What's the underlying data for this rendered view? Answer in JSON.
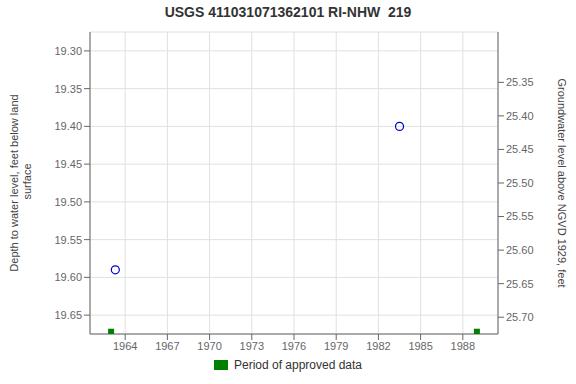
{
  "chart_data": {
    "type": "scatter",
    "title": "USGS 411031071362101 RI-NHW  219",
    "y_label": "Depth to water level, feet below land\n surface",
    "y2_label": "Groundwater level above NGVD 1929, feet",
    "xlim": [
      1961.5,
      1990.5
    ],
    "xticks": [
      1964,
      1967,
      1970,
      1973,
      1976,
      1979,
      1982,
      1985,
      1988
    ],
    "ylim": [
      19.675,
      19.275
    ],
    "yticks": [
      {
        "value": 19.3,
        "label": "19.30"
      },
      {
        "value": 19.35,
        "label": "19.35"
      },
      {
        "value": 19.4,
        "label": "19.40"
      },
      {
        "value": 19.45,
        "label": "19.45"
      },
      {
        "value": 19.5,
        "label": "19.50"
      },
      {
        "value": 19.55,
        "label": "19.55"
      },
      {
        "value": 19.6,
        "label": "19.60"
      },
      {
        "value": 19.65,
        "label": "19.65"
      }
    ],
    "y2lim": [
      25.725,
      25.275
    ],
    "y2ticks": [
      {
        "value": 25.7,
        "label": "25.70"
      },
      {
        "value": 25.65,
        "label": "25.65"
      },
      {
        "value": 25.6,
        "label": "25.60"
      },
      {
        "value": 25.55,
        "label": "25.55"
      },
      {
        "value": 25.5,
        "label": "25.50"
      },
      {
        "value": 25.45,
        "label": "25.45"
      },
      {
        "value": 25.4,
        "label": "25.40"
      },
      {
        "value": 25.35,
        "label": "25.35"
      }
    ],
    "series": [
      {
        "x": [
          1963.3,
          1983.5
        ],
        "values": [
          19.59,
          19.4
        ],
        "color": "#0000cc",
        "marker": "circle"
      },
      {
        "name": "Period of approved data",
        "x": [
          1963.0,
          1989.0
        ],
        "values": [
          19.672,
          19.672
        ],
        "color": "#008000",
        "marker": "square"
      }
    ],
    "grid": true,
    "legend": "bottom"
  }
}
